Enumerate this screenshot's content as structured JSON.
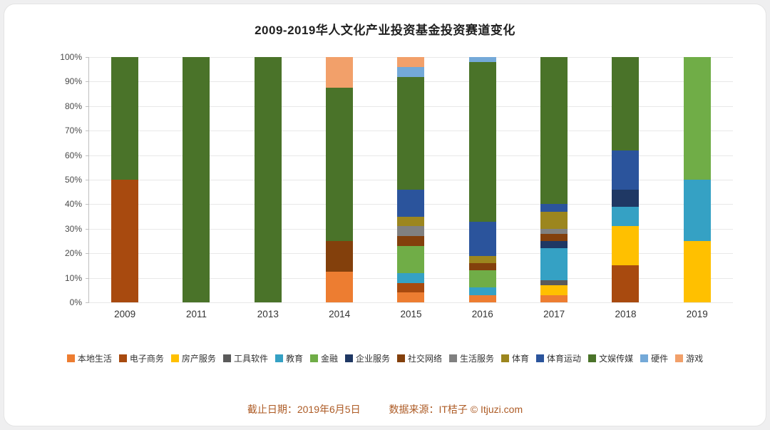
{
  "chart_data": {
    "type": "bar",
    "variant": "stacked-100-percent",
    "title": "2009-2019华人文化产业投资基金投资赛道变化",
    "categories": [
      "2009",
      "2011",
      "2013",
      "2014",
      "2015",
      "2016",
      "2017",
      "2018",
      "2019"
    ],
    "y_ticks": [
      "100%",
      "90%",
      "80%",
      "70%",
      "60%",
      "50%",
      "40%",
      "30%",
      "20%",
      "10%",
      "0%"
    ],
    "ylim": [
      0,
      100
    ],
    "grid": true,
    "legend_position": "bottom",
    "series": [
      {
        "name": "本地生活",
        "color": "#ED7D31",
        "values": [
          0,
          0,
          0,
          12.5,
          4,
          3,
          3,
          0,
          0
        ]
      },
      {
        "name": "电子商务",
        "color": "#A84A0F",
        "values": [
          50,
          0,
          0,
          0,
          4,
          0,
          0,
          15,
          0
        ]
      },
      {
        "name": "房产服务",
        "color": "#FFC000",
        "values": [
          0,
          0,
          0,
          0,
          0,
          0,
          4,
          16,
          25
        ]
      },
      {
        "name": "工具软件",
        "color": "#5A5A5A",
        "values": [
          0,
          0,
          0,
          0,
          0,
          0,
          2,
          0,
          0
        ]
      },
      {
        "name": "教育",
        "color": "#35A1C4",
        "values": [
          0,
          0,
          0,
          0,
          4,
          3,
          13,
          8,
          25
        ]
      },
      {
        "name": "金融",
        "color": "#70AD47",
        "values": [
          0,
          0,
          0,
          0,
          11,
          7,
          0,
          0,
          50
        ]
      },
      {
        "name": "企业服务",
        "color": "#1F3864",
        "values": [
          0,
          0,
          0,
          0,
          0,
          0,
          3,
          7,
          0
        ]
      },
      {
        "name": "社交网络",
        "color": "#83400C",
        "values": [
          0,
          0,
          0,
          12.5,
          4,
          3,
          3,
          0,
          0
        ]
      },
      {
        "name": "生活服务",
        "color": "#808080",
        "values": [
          0,
          0,
          0,
          0,
          4,
          0,
          2,
          0,
          0
        ]
      },
      {
        "name": "体育",
        "color": "#9C861E",
        "values": [
          0,
          0,
          0,
          0,
          4,
          3,
          7,
          0,
          0
        ]
      },
      {
        "name": "体育运动",
        "color": "#2B549C",
        "values": [
          0,
          0,
          0,
          0,
          11,
          14,
          3,
          16,
          0
        ]
      },
      {
        "name": "文娱传媒",
        "color": "#4A7329",
        "values": [
          50,
          100,
          100,
          62.5,
          46,
          65,
          60,
          38,
          0
        ]
      },
      {
        "name": "硬件",
        "color": "#74A9D8",
        "values": [
          0,
          0,
          0,
          0,
          4,
          2,
          0,
          0,
          0
        ]
      },
      {
        "name": "游戏",
        "color": "#F2A06A",
        "values": [
          0,
          0,
          0,
          12.5,
          4,
          0,
          0,
          0,
          0
        ]
      }
    ]
  },
  "footer": {
    "date": "截止日期：2019年6月5日",
    "source": "数据来源：IT桔子 © Itjuzi.com",
    "color": "#AD5B25"
  }
}
